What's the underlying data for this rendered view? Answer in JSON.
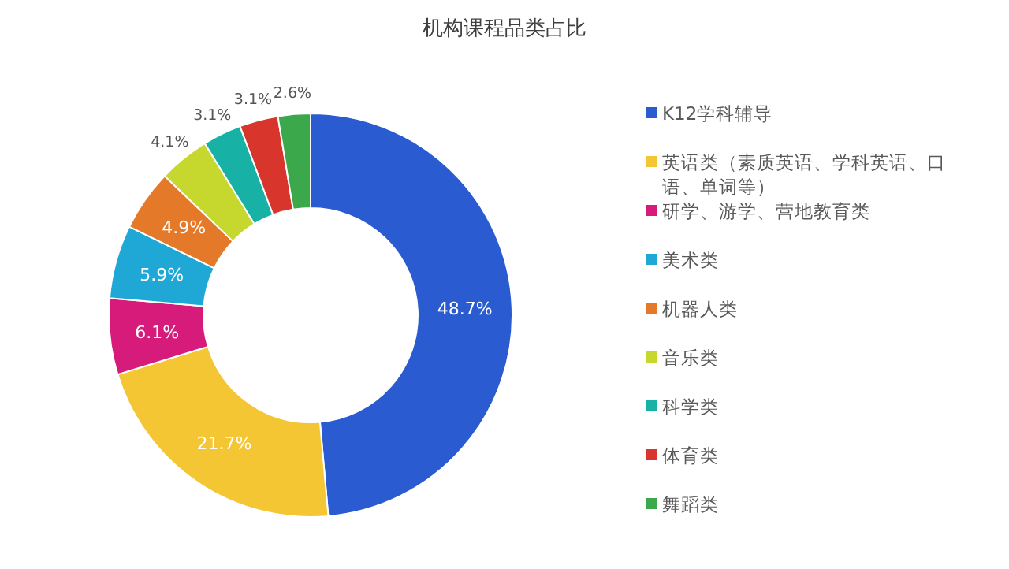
{
  "chart_data": {
    "type": "donut",
    "title": "机构课程品类占比",
    "categories": [
      "K12学科辅导",
      "英语类（素质英语、学科英语、口语、单词等）",
      "研学、游学、营地教育类",
      "美术类",
      "机器人类",
      "音乐类",
      "科学类",
      "体育类",
      "舞蹈类"
    ],
    "values": [
      48.7,
      21.7,
      6.1,
      5.9,
      4.9,
      4.1,
      3.1,
      3.1,
      2.6
    ],
    "value_labels": [
      "48.7%",
      "21.7%",
      "6.1%",
      "5.9%",
      "4.9%",
      "4.1%",
      "3.1%",
      "3.1%",
      "2.6%"
    ],
    "colors": [
      "#2a5bd0",
      "#f4c633",
      "#d61b7b",
      "#1fa8d6",
      "#e5792a",
      "#c6d82d",
      "#17b2a5",
      "#d8362c",
      "#3aa84b"
    ],
    "legend": "right"
  }
}
